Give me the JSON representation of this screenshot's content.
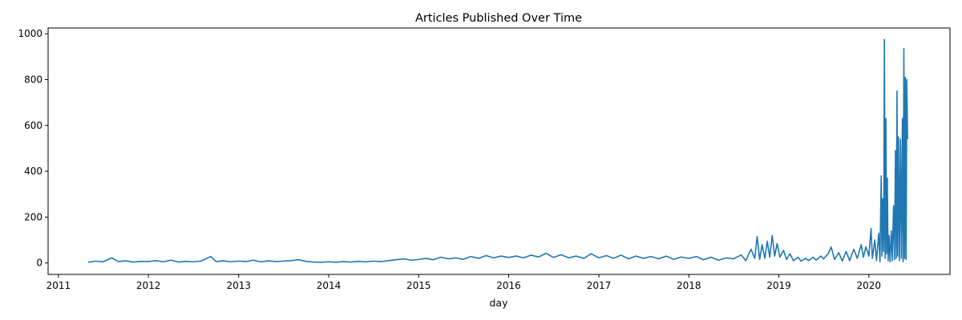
{
  "chart_data": {
    "type": "line",
    "title": "Articles Published Over Time",
    "xlabel": "day",
    "ylabel": "",
    "xlim": [
      "2010-11-20",
      "2020-11-25"
    ],
    "ylim": [
      -50,
      1025
    ],
    "x_ticks": [
      {
        "date": "2011-01-01",
        "label": "2011"
      },
      {
        "date": "2012-01-01",
        "label": "2012"
      },
      {
        "date": "2013-01-01",
        "label": "2013"
      },
      {
        "date": "2014-01-01",
        "label": "2014"
      },
      {
        "date": "2015-01-01",
        "label": "2015"
      },
      {
        "date": "2016-01-01",
        "label": "2016"
      },
      {
        "date": "2017-01-01",
        "label": "2017"
      },
      {
        "date": "2018-01-01",
        "label": "2018"
      },
      {
        "date": "2019-01-01",
        "label": "2019"
      },
      {
        "date": "2020-01-01",
        "label": "2020"
      }
    ],
    "y_ticks": [
      {
        "value": 0,
        "label": "0"
      },
      {
        "value": 200,
        "label": "200"
      },
      {
        "value": 400,
        "label": "400"
      },
      {
        "value": 600,
        "label": "600"
      },
      {
        "value": 800,
        "label": "800"
      },
      {
        "value": 1000,
        "label": "1000"
      }
    ],
    "grid": false,
    "series": [
      {
        "color": "#1f77b4",
        "points": [
          [
            "2011-05-01",
            3
          ],
          [
            "2011-06-01",
            8
          ],
          [
            "2011-07-01",
            5
          ],
          [
            "2011-08-05",
            22
          ],
          [
            "2011-09-01",
            6
          ],
          [
            "2011-10-01",
            9
          ],
          [
            "2011-11-01",
            4
          ],
          [
            "2011-12-01",
            7
          ],
          [
            "2012-01-01",
            6
          ],
          [
            "2012-02-01",
            10
          ],
          [
            "2012-03-01",
            5
          ],
          [
            "2012-04-01",
            12
          ],
          [
            "2012-05-01",
            4
          ],
          [
            "2012-06-01",
            7
          ],
          [
            "2012-07-01",
            5
          ],
          [
            "2012-08-01",
            8
          ],
          [
            "2012-09-10",
            28
          ],
          [
            "2012-10-01",
            6
          ],
          [
            "2012-11-01",
            9
          ],
          [
            "2012-12-01",
            5
          ],
          [
            "2013-01-01",
            8
          ],
          [
            "2013-02-01",
            6
          ],
          [
            "2013-03-01",
            12
          ],
          [
            "2013-04-01",
            5
          ],
          [
            "2013-05-01",
            9
          ],
          [
            "2013-06-01",
            6
          ],
          [
            "2013-07-01",
            8
          ],
          [
            "2013-08-01",
            10
          ],
          [
            "2013-09-01",
            14
          ],
          [
            "2013-10-01",
            7
          ],
          [
            "2013-11-01",
            4
          ],
          [
            "2013-12-01",
            3
          ],
          [
            "2014-01-01",
            5
          ],
          [
            "2014-02-01",
            3
          ],
          [
            "2014-03-01",
            6
          ],
          [
            "2014-04-01",
            4
          ],
          [
            "2014-05-01",
            7
          ],
          [
            "2014-06-01",
            5
          ],
          [
            "2014-07-01",
            8
          ],
          [
            "2014-08-01",
            6
          ],
          [
            "2014-09-01",
            10
          ],
          [
            "2014-10-01",
            14
          ],
          [
            "2014-11-01",
            18
          ],
          [
            "2014-12-01",
            12
          ],
          [
            "2015-01-01",
            15
          ],
          [
            "2015-02-01",
            20
          ],
          [
            "2015-03-01",
            14
          ],
          [
            "2015-04-01",
            25
          ],
          [
            "2015-05-01",
            18
          ],
          [
            "2015-06-01",
            22
          ],
          [
            "2015-07-01",
            16
          ],
          [
            "2015-08-01",
            28
          ],
          [
            "2015-09-01",
            20
          ],
          [
            "2015-10-01",
            32
          ],
          [
            "2015-11-01",
            22
          ],
          [
            "2015-12-01",
            30
          ],
          [
            "2016-01-01",
            24
          ],
          [
            "2016-02-01",
            30
          ],
          [
            "2016-03-01",
            22
          ],
          [
            "2016-04-01",
            34
          ],
          [
            "2016-05-01",
            26
          ],
          [
            "2016-06-01",
            42
          ],
          [
            "2016-07-01",
            24
          ],
          [
            "2016-08-01",
            36
          ],
          [
            "2016-09-01",
            22
          ],
          [
            "2016-10-01",
            30
          ],
          [
            "2016-11-01",
            20
          ],
          [
            "2016-12-01",
            40
          ],
          [
            "2017-01-01",
            22
          ],
          [
            "2017-02-01",
            32
          ],
          [
            "2017-03-01",
            20
          ],
          [
            "2017-04-01",
            34
          ],
          [
            "2017-05-01",
            18
          ],
          [
            "2017-06-01",
            30
          ],
          [
            "2017-07-01",
            20
          ],
          [
            "2017-08-01",
            28
          ],
          [
            "2017-09-01",
            18
          ],
          [
            "2017-10-01",
            30
          ],
          [
            "2017-11-01",
            16
          ],
          [
            "2017-12-01",
            26
          ],
          [
            "2018-01-01",
            20
          ],
          [
            "2018-02-01",
            28
          ],
          [
            "2018-03-01",
            14
          ],
          [
            "2018-04-01",
            25
          ],
          [
            "2018-05-01",
            12
          ],
          [
            "2018-06-01",
            22
          ],
          [
            "2018-07-01",
            18
          ],
          [
            "2018-08-01",
            35
          ],
          [
            "2018-08-20",
            10
          ],
          [
            "2018-09-10",
            60
          ],
          [
            "2018-09-25",
            20
          ],
          [
            "2018-10-05",
            115
          ],
          [
            "2018-10-15",
            15
          ],
          [
            "2018-10-25",
            80
          ],
          [
            "2018-11-05",
            20
          ],
          [
            "2018-11-15",
            95
          ],
          [
            "2018-11-25",
            25
          ],
          [
            "2018-12-05",
            120
          ],
          [
            "2018-12-15",
            30
          ],
          [
            "2018-12-25",
            85
          ],
          [
            "2019-01-05",
            25
          ],
          [
            "2019-01-20",
            55
          ],
          [
            "2019-02-01",
            15
          ],
          [
            "2019-02-15",
            40
          ],
          [
            "2019-03-01",
            10
          ],
          [
            "2019-03-20",
            25
          ],
          [
            "2019-04-01",
            8
          ],
          [
            "2019-04-20",
            20
          ],
          [
            "2019-05-01",
            10
          ],
          [
            "2019-05-20",
            25
          ],
          [
            "2019-06-01",
            12
          ],
          [
            "2019-06-20",
            30
          ],
          [
            "2019-07-01",
            18
          ],
          [
            "2019-07-20",
            40
          ],
          [
            "2019-08-01",
            70
          ],
          [
            "2019-08-15",
            15
          ],
          [
            "2019-09-01",
            45
          ],
          [
            "2019-09-15",
            8
          ],
          [
            "2019-10-01",
            50
          ],
          [
            "2019-10-15",
            10
          ],
          [
            "2019-11-01",
            60
          ],
          [
            "2019-11-15",
            20
          ],
          [
            "2019-12-01",
            80
          ],
          [
            "2019-12-10",
            25
          ],
          [
            "2019-12-20",
            70
          ],
          [
            "2020-01-01",
            30
          ],
          [
            "2020-01-10",
            150
          ],
          [
            "2020-01-15",
            20
          ],
          [
            "2020-01-25",
            100
          ],
          [
            "2020-02-01",
            10
          ],
          [
            "2020-02-10",
            130
          ],
          [
            "2020-02-15",
            5
          ],
          [
            "2020-02-20",
            380
          ],
          [
            "2020-02-23",
            30
          ],
          [
            "2020-02-26",
            280
          ],
          [
            "2020-03-01",
            50
          ],
          [
            "2020-03-04",
            975
          ],
          [
            "2020-03-07",
            20
          ],
          [
            "2020-03-10",
            630
          ],
          [
            "2020-03-13",
            40
          ],
          [
            "2020-03-16",
            370
          ],
          [
            "2020-03-19",
            10
          ],
          [
            "2020-03-23",
            120
          ],
          [
            "2020-03-27",
            5
          ],
          [
            "2020-04-01",
            140
          ],
          [
            "2020-04-05",
            10
          ],
          [
            "2020-04-10",
            250
          ],
          [
            "2020-04-14",
            15
          ],
          [
            "2020-04-18",
            490
          ],
          [
            "2020-04-21",
            20
          ],
          [
            "2020-04-24",
            750
          ],
          [
            "2020-04-27",
            30
          ],
          [
            "2020-04-30",
            550
          ],
          [
            "2020-05-04",
            10
          ],
          [
            "2020-05-08",
            540
          ],
          [
            "2020-05-12",
            20
          ],
          [
            "2020-05-16",
            630
          ],
          [
            "2020-05-19",
            5
          ],
          [
            "2020-05-22",
            935
          ],
          [
            "2020-05-25",
            20
          ],
          [
            "2020-05-28",
            810
          ],
          [
            "2020-05-31",
            15
          ],
          [
            "2020-06-03",
            800
          ],
          [
            "2020-06-06",
            540
          ]
        ]
      }
    ]
  }
}
